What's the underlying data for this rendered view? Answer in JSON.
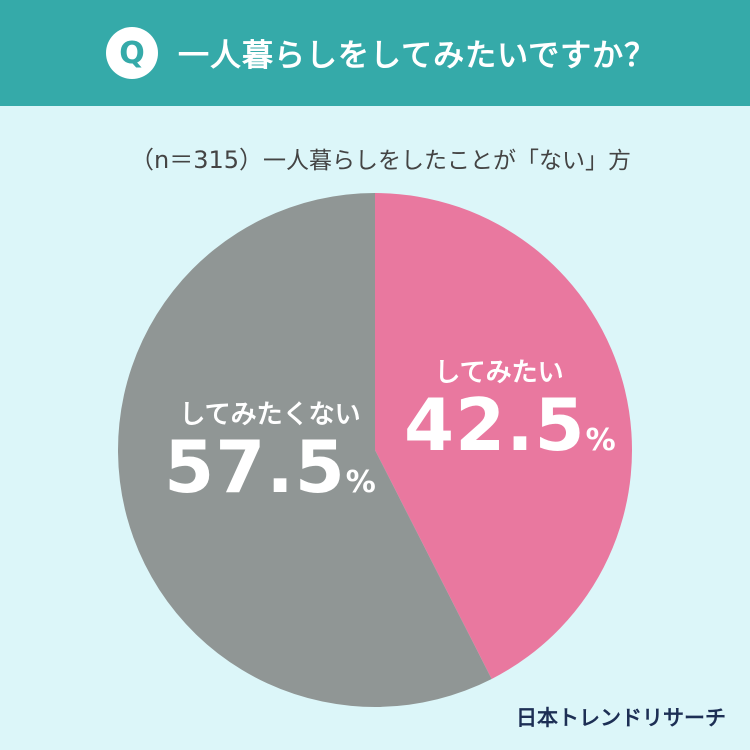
{
  "header": {
    "badge": "Q",
    "question": "一人暮らしをしてみたいですか？"
  },
  "subtitle": {
    "n_label": "（n＝315）",
    "text": "一人暮らしをしたことが「ない」方"
  },
  "chart_data": {
    "type": "pie",
    "total_n": 315,
    "slices": [
      {
        "label": "してみたい",
        "value": 42.5,
        "unit": "%",
        "color": "#e9789f"
      },
      {
        "label": "してみたくない",
        "value": 57.5,
        "unit": "%",
        "color": "#909695"
      }
    ]
  },
  "labels": {
    "want": {
      "name": "してみたい",
      "num": "42.5",
      "unit": "%"
    },
    "not_want": {
      "name": "してみたくない",
      "num": "57.5",
      "unit": "%"
    }
  },
  "footer": {
    "brand": "日本トレンドリサーチ"
  },
  "colors": {
    "header_bg": "#35aaa9",
    "page_bg": "#dcf6f9"
  }
}
